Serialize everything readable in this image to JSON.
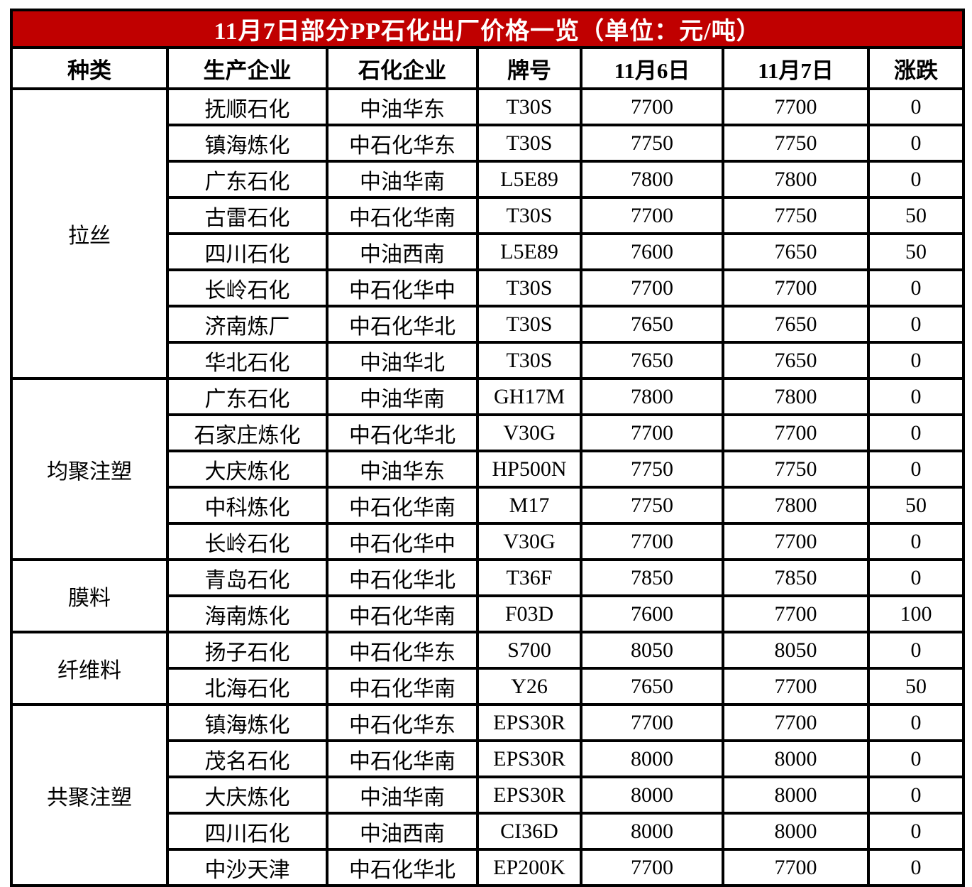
{
  "title": "11月7日部分PP石化出厂价格一览（单位：元/吨）",
  "columns": [
    "种类",
    "生产企业",
    "石化企业",
    "牌号",
    "11月6日",
    "11月7日",
    "涨跌"
  ],
  "groups": [
    {
      "category": "拉丝",
      "rows": [
        [
          "抚顺石化",
          "中油华东",
          "T30S",
          "7700",
          "7700",
          "0"
        ],
        [
          "镇海炼化",
          "中石化华东",
          "T30S",
          "7750",
          "7750",
          "0"
        ],
        [
          "广东石化",
          "中油华南",
          "L5E89",
          "7800",
          "7800",
          "0"
        ],
        [
          "古雷石化",
          "中石化华南",
          "T30S",
          "7700",
          "7750",
          "50"
        ],
        [
          "四川石化",
          "中油西南",
          "L5E89",
          "7600",
          "7650",
          "50"
        ],
        [
          "长岭石化",
          "中石化华中",
          "T30S",
          "7700",
          "7700",
          "0"
        ],
        [
          "济南炼厂",
          "中石化华北",
          "T30S",
          "7650",
          "7650",
          "0"
        ],
        [
          "华北石化",
          "中油华北",
          "T30S",
          "7650",
          "7650",
          "0"
        ]
      ]
    },
    {
      "category": "均聚注塑",
      "rows": [
        [
          "广东石化",
          "中油华南",
          "GH17M",
          "7800",
          "7800",
          "0"
        ],
        [
          "石家庄炼化",
          "中石化华北",
          "V30G",
          "7700",
          "7700",
          "0"
        ],
        [
          "大庆炼化",
          "中油华东",
          "HP500N",
          "7750",
          "7750",
          "0"
        ],
        [
          "中科炼化",
          "中石化华南",
          "M17",
          "7750",
          "7800",
          "50"
        ],
        [
          "长岭石化",
          "中石化华中",
          "V30G",
          "7700",
          "7700",
          "0"
        ]
      ]
    },
    {
      "category": "膜料",
      "rows": [
        [
          "青岛石化",
          "中石化华北",
          "T36F",
          "7850",
          "7850",
          "0"
        ],
        [
          "海南炼化",
          "中石化华南",
          "F03D",
          "7600",
          "7700",
          "100"
        ]
      ]
    },
    {
      "category": "纤维料",
      "rows": [
        [
          "扬子石化",
          "中石化华东",
          "S700",
          "8050",
          "8050",
          "0"
        ],
        [
          "北海石化",
          "中石化华南",
          "Y26",
          "7650",
          "7700",
          "50"
        ]
      ]
    },
    {
      "category": "共聚注塑",
      "rows": [
        [
          "镇海炼化",
          "中石化华东",
          "EPS30R",
          "7700",
          "7700",
          "0"
        ],
        [
          "茂名石化",
          "中石化华南",
          "EPS30R",
          "8000",
          "8000",
          "0"
        ],
        [
          "大庆炼化",
          "中油华南",
          "EPS30R",
          "8000",
          "8000",
          "0"
        ],
        [
          "四川石化",
          "中油西南",
          "CI36D",
          "8000",
          "8000",
          "0"
        ],
        [
          "中沙天津",
          "中石化华北",
          "EP200K",
          "7700",
          "7700",
          "0"
        ]
      ]
    }
  ],
  "colors": {
    "title_bg": "#C00000",
    "title_text": "#FFFFFF",
    "border": "#000000",
    "cell_bg": "#FFFFFF",
    "cell_text": "#000000"
  },
  "chart_data": {
    "type": "table",
    "title": "11月7日部分PP石化出厂价格一览（单位：元/吨）",
    "columns": [
      "种类",
      "生产企业",
      "石化企业",
      "牌号",
      "11月6日",
      "11月7日",
      "涨跌"
    ],
    "rows": [
      [
        "拉丝",
        "抚顺石化",
        "中油华东",
        "T30S",
        7700,
        7700,
        0
      ],
      [
        "拉丝",
        "镇海炼化",
        "中石化华东",
        "T30S",
        7750,
        7750,
        0
      ],
      [
        "拉丝",
        "广东石化",
        "中油华南",
        "L5E89",
        7800,
        7800,
        0
      ],
      [
        "拉丝",
        "古雷石化",
        "中石化华南",
        "T30S",
        7700,
        7750,
        50
      ],
      [
        "拉丝",
        "四川石化",
        "中油西南",
        "L5E89",
        7600,
        7650,
        50
      ],
      [
        "拉丝",
        "长岭石化",
        "中石化华中",
        "T30S",
        7700,
        7700,
        0
      ],
      [
        "拉丝",
        "济南炼厂",
        "中石化华北",
        "T30S",
        7650,
        7650,
        0
      ],
      [
        "拉丝",
        "华北石化",
        "中油华北",
        "T30S",
        7650,
        7650,
        0
      ],
      [
        "均聚注塑",
        "广东石化",
        "中油华南",
        "GH17M",
        7800,
        7800,
        0
      ],
      [
        "均聚注塑",
        "石家庄炼化",
        "中石化华北",
        "V30G",
        7700,
        7700,
        0
      ],
      [
        "均聚注塑",
        "大庆炼化",
        "中油华东",
        "HP500N",
        7750,
        7750,
        0
      ],
      [
        "均聚注塑",
        "中科炼化",
        "中石化华南",
        "M17",
        7750,
        7800,
        50
      ],
      [
        "均聚注塑",
        "长岭石化",
        "中石化华中",
        "V30G",
        7700,
        7700,
        0
      ],
      [
        "膜料",
        "青岛石化",
        "中石化华北",
        "T36F",
        7850,
        7850,
        0
      ],
      [
        "膜料",
        "海南炼化",
        "中石化华南",
        "F03D",
        7600,
        7700,
        100
      ],
      [
        "纤维料",
        "扬子石化",
        "中石化华东",
        "S700",
        8050,
        8050,
        0
      ],
      [
        "纤维料",
        "北海石化",
        "中石化华南",
        "Y26",
        7650,
        7700,
        50
      ],
      [
        "共聚注塑",
        "镇海炼化",
        "中石化华东",
        "EPS30R",
        7700,
        7700,
        0
      ],
      [
        "共聚注塑",
        "茂名石化",
        "中石化华南",
        "EPS30R",
        8000,
        8000,
        0
      ],
      [
        "共聚注塑",
        "大庆炼化",
        "中油华南",
        "EPS30R",
        8000,
        8000,
        0
      ],
      [
        "共聚注塑",
        "四川石化",
        "中油西南",
        "CI36D",
        8000,
        8000,
        0
      ],
      [
        "共聚注塑",
        "中沙天津",
        "中石化华北",
        "EP200K",
        7700,
        7700,
        0
      ]
    ]
  }
}
